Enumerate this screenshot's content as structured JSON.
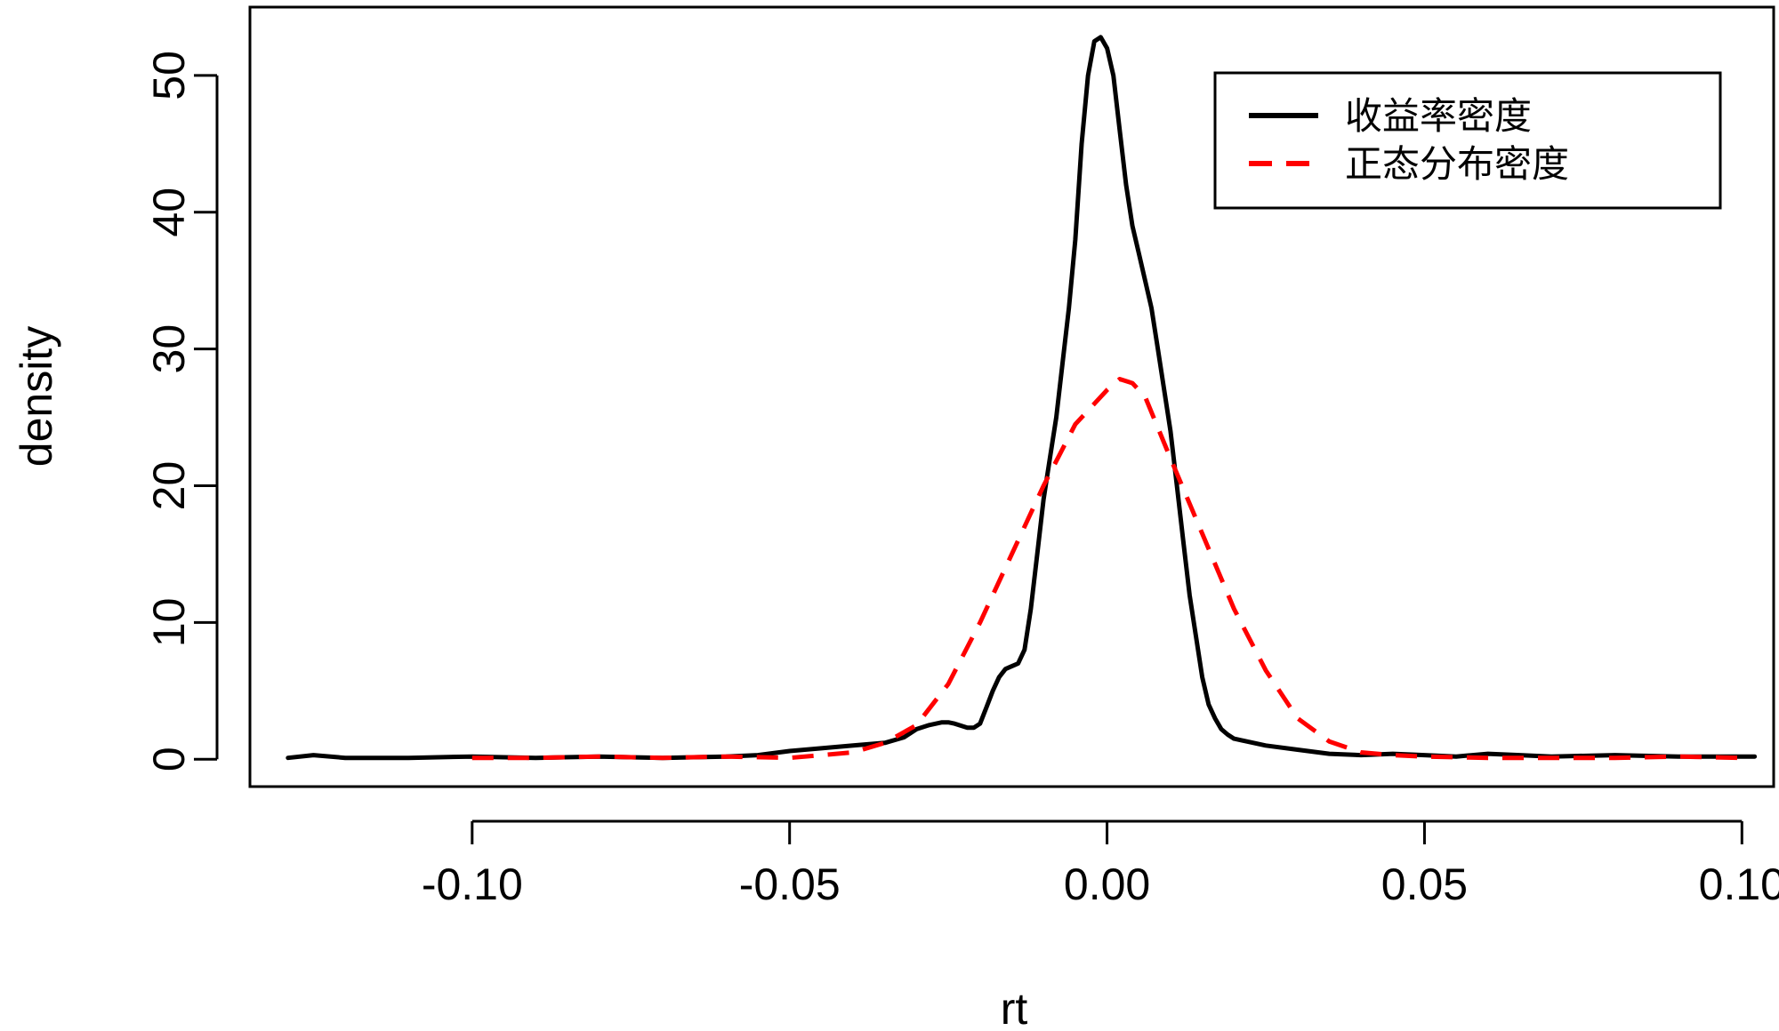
{
  "chart_data": {
    "type": "line",
    "xlabel": "rt",
    "ylabel": "density",
    "xlim": [
      -0.135,
      0.105
    ],
    "ylim": [
      -2,
      55
    ],
    "x_ticks": [
      -0.1,
      -0.05,
      0.0,
      0.05,
      0.1
    ],
    "x_tick_labels": [
      "-0.10",
      "-0.05",
      "0.00",
      "0.05",
      "0.10"
    ],
    "y_ticks": [
      0,
      10,
      20,
      30,
      40,
      50
    ],
    "y_tick_labels": [
      "0",
      "10",
      "20",
      "30",
      "40",
      "50"
    ],
    "grid": false,
    "legend_position": "top-right",
    "series": [
      {
        "name": "收益率密度",
        "color": "#000000",
        "dash": "solid",
        "x": [
          -0.129,
          -0.125,
          -0.12,
          -0.11,
          -0.1,
          -0.09,
          -0.08,
          -0.07,
          -0.06,
          -0.055,
          -0.05,
          -0.045,
          -0.04,
          -0.035,
          -0.032,
          -0.03,
          -0.028,
          -0.026,
          -0.025,
          -0.024,
          -0.022,
          -0.021,
          -0.02,
          -0.019,
          -0.018,
          -0.017,
          -0.016,
          -0.015,
          -0.014,
          -0.013,
          -0.012,
          -0.011,
          -0.01,
          -0.009,
          -0.008,
          -0.007,
          -0.006,
          -0.005,
          -0.004,
          -0.003,
          -0.002,
          -0.001,
          0.0,
          0.001,
          0.002,
          0.003,
          0.004,
          0.005,
          0.006,
          0.007,
          0.008,
          0.009,
          0.01,
          0.011,
          0.012,
          0.013,
          0.014,
          0.015,
          0.016,
          0.017,
          0.018,
          0.019,
          0.02,
          0.022,
          0.025,
          0.03,
          0.035,
          0.04,
          0.045,
          0.05,
          0.055,
          0.06,
          0.065,
          0.07,
          0.08,
          0.09,
          0.1,
          0.102
        ],
        "y": [
          0.1,
          0.3,
          0.1,
          0.1,
          0.2,
          0.1,
          0.2,
          0.1,
          0.2,
          0.3,
          0.6,
          0.8,
          1.0,
          1.2,
          1.6,
          2.2,
          2.5,
          2.7,
          2.7,
          2.6,
          2.3,
          2.3,
          2.6,
          3.8,
          5.0,
          6.0,
          6.6,
          6.8,
          7.0,
          8.0,
          11.0,
          15.0,
          19.0,
          22.0,
          25.0,
          29.0,
          33.0,
          38.0,
          45.0,
          50.0,
          52.5,
          52.8,
          52.0,
          50.0,
          46.0,
          42.0,
          39.0,
          37.0,
          35.0,
          33.0,
          30.0,
          27.0,
          24.0,
          20.0,
          16.0,
          12.0,
          9.0,
          6.0,
          4.0,
          3.0,
          2.2,
          1.8,
          1.5,
          1.3,
          1.0,
          0.7,
          0.4,
          0.3,
          0.4,
          0.3,
          0.2,
          0.4,
          0.3,
          0.2,
          0.3,
          0.2,
          0.2,
          0.2
        ]
      },
      {
        "name": "正态分布密度",
        "color": "#ff0000",
        "dash": "dashed",
        "x": [
          -0.1,
          -0.09,
          -0.08,
          -0.07,
          -0.06,
          -0.05,
          -0.045,
          -0.04,
          -0.035,
          -0.03,
          -0.025,
          -0.02,
          -0.015,
          -0.01,
          -0.005,
          0.0,
          0.002,
          0.004,
          0.006,
          0.01,
          0.015,
          0.02,
          0.025,
          0.03,
          0.035,
          0.04,
          0.045,
          0.05,
          0.06,
          0.07,
          0.08,
          0.09,
          0.1
        ],
        "y": [
          0.1,
          0.1,
          0.2,
          0.1,
          0.2,
          0.1,
          0.3,
          0.5,
          1.2,
          2.5,
          5.5,
          10.0,
          15.0,
          20.0,
          24.5,
          27.0,
          27.8,
          27.5,
          26.5,
          22.0,
          16.5,
          11.0,
          6.5,
          3.0,
          1.3,
          0.5,
          0.3,
          0.2,
          0.1,
          0.1,
          0.1,
          0.2,
          0.1
        ]
      }
    ]
  }
}
